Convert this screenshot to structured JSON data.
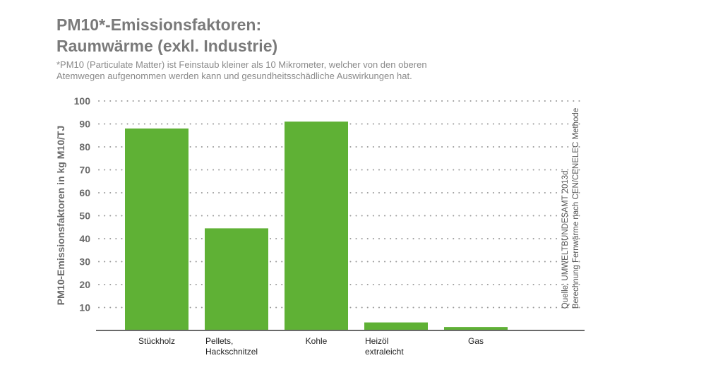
{
  "header": {
    "title_line1": "PM10*-Emissionsfaktoren:",
    "title_line2": "Raumwärme (exkl. Industrie)",
    "footnote_line1": "*PM10 (Particulate Matter) ist Feinstaub kleiner als 10 Mikrometer, welcher von den oberen",
    "footnote_line2": "Atemwegen aufgenommen werden kann und gesundheitsschädliche Auswirkungen hat."
  },
  "source": {
    "line1": "Quelle: UMWELTBUNDESAMT 2013d",
    "line2": "Berechnung Fernwärme nach CEN/CENELEC Methode"
  },
  "colors": {
    "bar": "#5fb135",
    "axis": "#6a6a6a",
    "grid": "#9a9a9a",
    "tick_text": "#6a6a6a"
  },
  "chart_data": {
    "type": "bar",
    "categories": [
      [
        "Stückholz"
      ],
      [
        "Pellets,",
        "Hackschnitzel"
      ],
      [
        "Kohle"
      ],
      [
        "Heizöl",
        "extraleicht"
      ],
      [
        "Gas"
      ]
    ],
    "values": [
      88,
      44.5,
      91,
      3.5,
      1.5
    ],
    "ylabel": "PM10-Emissionsfaktoren in kg M10/TJ",
    "xlabel": "",
    "ylim": [
      0,
      100
    ],
    "yticks": [
      10,
      20,
      30,
      40,
      50,
      60,
      70,
      80,
      90,
      100
    ],
    "grid": true,
    "legend": "none"
  }
}
